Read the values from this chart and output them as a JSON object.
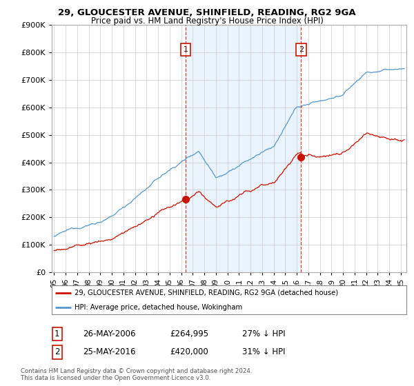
{
  "title": "29, GLOUCESTER AVENUE, SHINFIELD, READING, RG2 9GA",
  "subtitle": "Price paid vs. HM Land Registry's House Price Index (HPI)",
  "ylim": [
    0,
    900000
  ],
  "yticks": [
    0,
    100000,
    200000,
    300000,
    400000,
    500000,
    600000,
    700000,
    800000,
    900000
  ],
  "xlim_start": 1994.8,
  "xlim_end": 2025.5,
  "hpi_color": "#5599cc",
  "price_color": "#cc1100",
  "shade_color": "#ddeeff",
  "marker1_date_f": 2006.38,
  "marker1_price": 264995,
  "marker1_label": "26-MAY-2006",
  "marker1_amount": "£264,995",
  "marker1_pct": "27% ↓ HPI",
  "marker2_date_f": 2016.38,
  "marker2_price": 420000,
  "marker2_label": "25-MAY-2016",
  "marker2_amount": "£420,000",
  "marker2_pct": "31% ↓ HPI",
  "legend_line1": "29, GLOUCESTER AVENUE, SHINFIELD, READING, RG2 9GA (detached house)",
  "legend_line2": "HPI: Average price, detached house, Wokingham",
  "footnote": "Contains HM Land Registry data © Crown copyright and database right 2024.\nThis data is licensed under the Open Government Licence v3.0.",
  "background_color": "#ffffff",
  "grid_color": "#cccccc",
  "xtick_labels": [
    "95",
    "96",
    "97",
    "98",
    "99",
    "00",
    "01",
    "02",
    "03",
    "04",
    "05",
    "06",
    "07",
    "08",
    "09",
    "10",
    "11",
    "12",
    "13",
    "14",
    "15",
    "16",
    "17",
    "18",
    "19",
    "20",
    "21",
    "22",
    "23",
    "24",
    "25"
  ]
}
